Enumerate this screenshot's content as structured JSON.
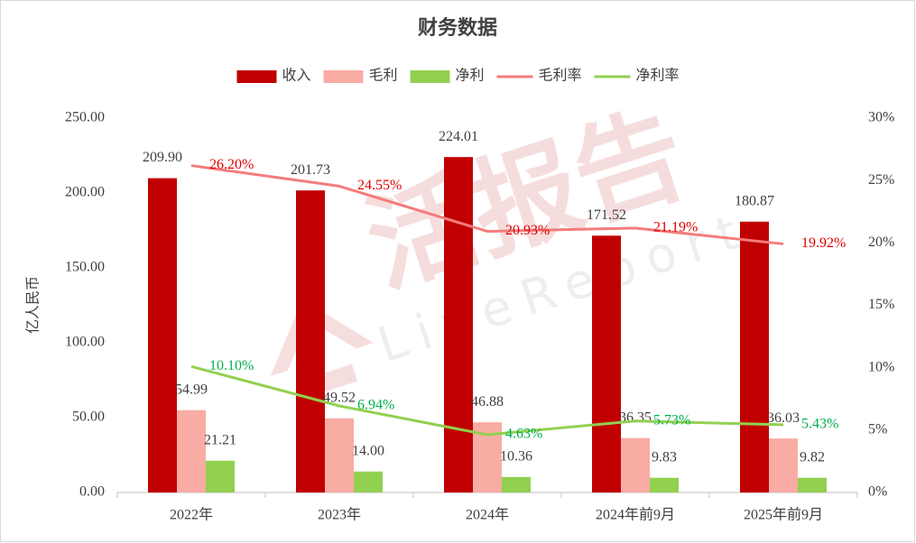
{
  "chart_data": {
    "type": "bar",
    "title": "财务数据",
    "ylabel": "亿人民币",
    "watermark": "活报告",
    "watermark_sub": "LiveReport",
    "categories": [
      "2022年",
      "2023年",
      "2024年",
      "2024年前9月",
      "2025年前9月"
    ],
    "series": [
      {
        "name": "收入",
        "type": "bar",
        "color": "#c00000",
        "label_color": "#404040",
        "values": [
          209.9,
          201.73,
          224.01,
          171.52,
          180.87
        ],
        "value_labels": [
          "209.90",
          "201.73",
          "224.01",
          "171.52",
          "180.87"
        ]
      },
      {
        "name": "毛利",
        "type": "bar",
        "color": "#f8aca4",
        "label_color": "#404040",
        "values": [
          54.99,
          49.52,
          46.88,
          36.35,
          36.03
        ],
        "value_labels": [
          "54.99",
          "49.52",
          "46.88",
          "36.35",
          "36.03"
        ]
      },
      {
        "name": "净利",
        "type": "bar",
        "color": "#92d050",
        "label_color": "#404040",
        "values": [
          21.21,
          14,
          10.36,
          9.83,
          9.82
        ],
        "value_labels": [
          "21.21",
          "14.00",
          "10.36",
          "9.83",
          "9.82"
        ]
      },
      {
        "name": "毛利率",
        "type": "line",
        "axis": "y2",
        "color": "#f47c7c",
        "label_color": "#e00000",
        "values": [
          26.2,
          24.55,
          20.93,
          21.19,
          19.92
        ],
        "value_labels": [
          "26.20%",
          "24.55%",
          "20.93%",
          "21.19%",
          "19.92%"
        ]
      },
      {
        "name": "净利率",
        "type": "line",
        "axis": "y2",
        "color": "#92d050",
        "label_color": "#00b050",
        "values": [
          10.1,
          6.94,
          4.63,
          5.73,
          5.43
        ],
        "value_labels": [
          "10.10%",
          "6.94%",
          "4.63%",
          "5.73%",
          "5.43%"
        ]
      }
    ],
    "ylim": [
      0,
      250
    ],
    "yticks": [
      {
        "value": 0,
        "label": "0.00"
      },
      {
        "value": 50,
        "label": "50.00"
      },
      {
        "value": 100,
        "label": "100.00"
      },
      {
        "value": 150,
        "label": "150.00"
      },
      {
        "value": 200,
        "label": "200.00"
      },
      {
        "value": 250,
        "label": "250.00"
      }
    ],
    "y2lim": [
      0,
      30
    ],
    "y2ticks": [
      {
        "value": 0,
        "label": "0%"
      },
      {
        "value": 5,
        "label": "5%"
      },
      {
        "value": 10,
        "label": "10%"
      },
      {
        "value": 15,
        "label": "15%"
      },
      {
        "value": 20,
        "label": "20%"
      },
      {
        "value": 25,
        "label": "25%"
      },
      {
        "value": 30,
        "label": "30%"
      }
    ],
    "legend": "top",
    "grid": false
  }
}
